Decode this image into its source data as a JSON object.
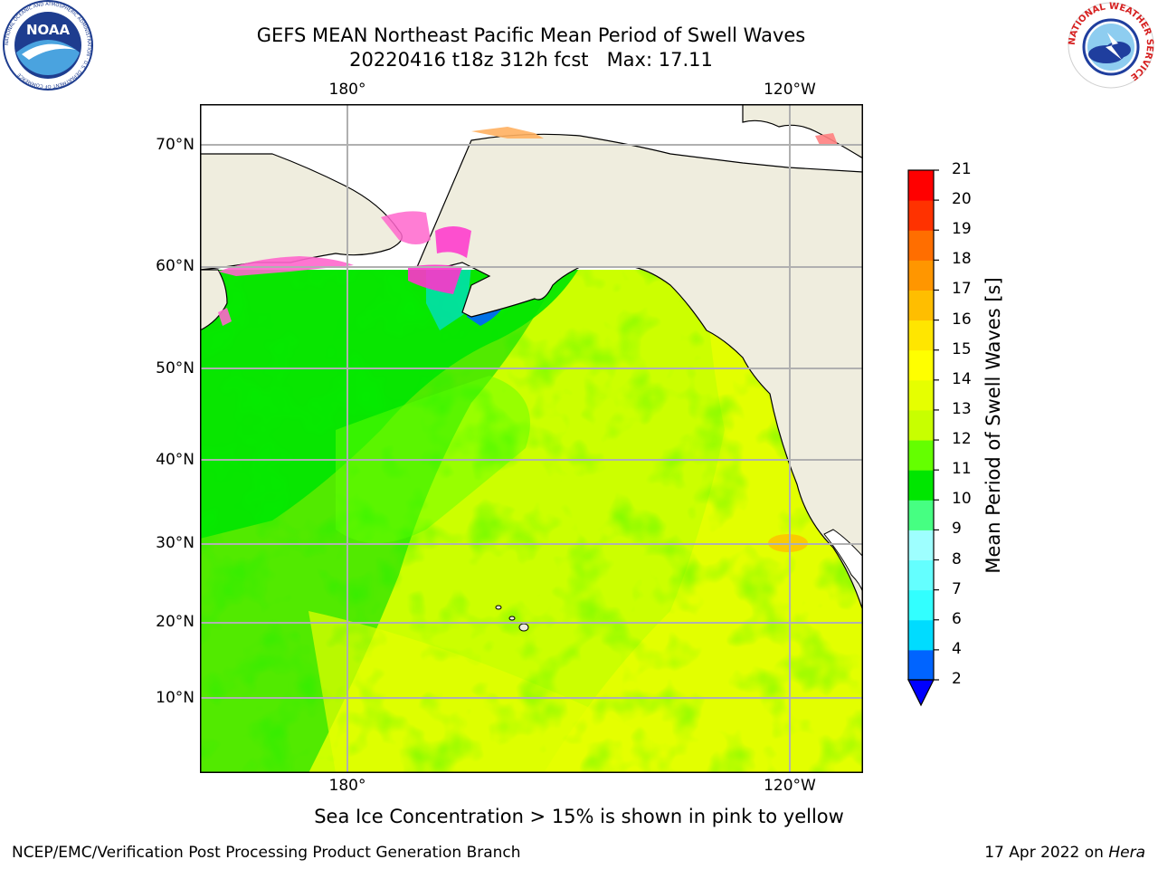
{
  "title": {
    "line1": "GEFS MEAN Northeast Pacific Mean Period of Swell Waves",
    "line2": "20220416 t18z 312h fcst   Max: 17.11"
  },
  "logos": {
    "left": "NOAA",
    "left_ring_text": "NATIONAL OCEANIC AND ATMOSPHERIC ADMINISTRATION · U.S. DEPARTMENT OF COMMERCE",
    "right_ring_text": "NATIONAL WEATHER SERVICE"
  },
  "map": {
    "lon_labels_top": [
      "180°",
      "120°W"
    ],
    "lon_labels_bottom": [
      "180°",
      "120°W"
    ],
    "lat_labels": [
      "70°N",
      "60°N",
      "50°N",
      "40°N",
      "30°N",
      "20°N",
      "10°N"
    ],
    "land_color": "#efedde",
    "ocean_base_color": "#ccff00"
  },
  "colorbar": {
    "title": "Mean Period of Swell Waves [s]",
    "ticks": [
      "2",
      "4",
      "6",
      "7",
      "8",
      "9",
      "10",
      "11",
      "12",
      "13",
      "14",
      "15",
      "16",
      "17",
      "18",
      "19",
      "20",
      "21"
    ],
    "colors": [
      "#0064ff",
      "#00dcff",
      "#32ffff",
      "#64ffff",
      "#9effff",
      "#46ff82",
      "#00e600",
      "#64ff00",
      "#c8ff00",
      "#e6ff00",
      "#ffff00",
      "#ffe600",
      "#ffbe00",
      "#ff9600",
      "#ff6e00",
      "#ff3200",
      "#ff0000"
    ],
    "extend_color": "#0000ff"
  },
  "note": "Sea Ice Concentration > 15% is shown in pink to yellow",
  "footer": {
    "left": "NCEP/EMC/Verification Post Processing Product Generation Branch",
    "right_prefix": "17 Apr 2022 on ",
    "right_italic": "Hera"
  }
}
